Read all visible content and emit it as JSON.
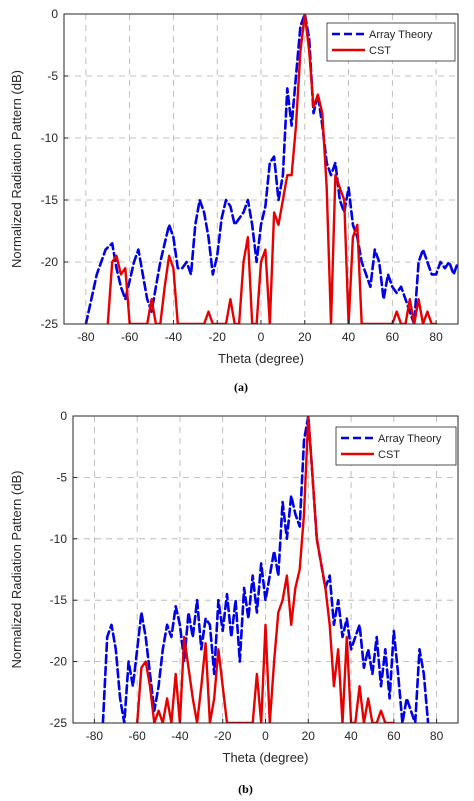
{
  "chart_data": [
    {
      "type": "line",
      "caption": "(a)",
      "xlabel": "Theta (degree)",
      "ylabel": "Normalized Radiation Pattern (dB)",
      "xlim": [
        -90,
        90
      ],
      "ylim": [
        -25,
        0
      ],
      "xticks": [
        -80,
        -60,
        -40,
        -20,
        0,
        20,
        40,
        60,
        80
      ],
      "yticks": [
        0,
        -5,
        -10,
        -15,
        -20,
        -25
      ],
      "grid": true,
      "legend_position": "top-right",
      "series": [
        {
          "name": "Array Theory",
          "color": "#0000e6",
          "dash": "dashed",
          "x": [
            -80,
            -75,
            -71,
            -68,
            -66,
            -64,
            -62,
            -60,
            -58,
            -56,
            -54,
            -52,
            -50,
            -48,
            -46,
            -44,
            -42,
            -40,
            -38,
            -36,
            -34,
            -32,
            -30,
            -28,
            -26,
            -24,
            -22,
            -20,
            -18,
            -16,
            -14,
            -12,
            -10,
            -8,
            -6,
            -4,
            -2,
            0,
            2,
            4,
            6,
            8,
            10,
            12,
            14,
            16,
            18,
            20,
            22,
            24,
            26,
            28,
            30,
            32,
            34,
            36,
            38,
            40,
            42,
            44,
            46,
            48,
            50,
            52,
            54,
            56,
            58,
            60,
            62,
            64,
            66,
            68,
            70,
            72,
            74,
            76,
            78,
            80,
            82,
            84,
            86,
            88,
            90
          ],
          "y": [
            -25,
            -21,
            -19,
            -18.5,
            -20.5,
            -22,
            -23,
            -21.5,
            -20,
            -19,
            -21,
            -23,
            -24,
            -22,
            -20,
            -18.5,
            -17,
            -18,
            -20.5,
            -20.5,
            -20,
            -21,
            -17,
            -15,
            -16,
            -18,
            -21,
            -19.5,
            -16.5,
            -15,
            -15.5,
            -17,
            -16.5,
            -16,
            -15,
            -17,
            -20,
            -17,
            -15.5,
            -12,
            -11.5,
            -15,
            -13,
            -6,
            -9,
            -5,
            -1,
            0,
            -2,
            -8,
            -6.5,
            -9,
            -12,
            -13,
            -12,
            -15,
            -16,
            -14,
            -17,
            -18,
            -20,
            -21,
            -22,
            -19,
            -20,
            -23,
            -21,
            -22,
            -22.5,
            -22,
            -23,
            -24,
            -25,
            -20,
            -19,
            -20,
            -21,
            -21,
            -20,
            -20.5,
            -20,
            -21,
            -20
          ]
        },
        {
          "name": "CST",
          "color": "#e60000",
          "dash": "solid",
          "x": [
            -70,
            -68,
            -66,
            -64,
            -62,
            -60,
            -58,
            -56,
            -54,
            -52,
            -50,
            -48,
            -46,
            -44,
            -42,
            -40,
            -38,
            -36,
            -34,
            -32,
            -30,
            -28,
            -26,
            -24,
            -22,
            -20,
            -18,
            -16,
            -14,
            -12,
            -10,
            -8,
            -6,
            -4,
            -2,
            0,
            2,
            4,
            6,
            8,
            10,
            12,
            14,
            16,
            18,
            20,
            22,
            24,
            26,
            28,
            30,
            32,
            34,
            36,
            38,
            40,
            42,
            44,
            46,
            48,
            50,
            52,
            54,
            56,
            58,
            60,
            62,
            64,
            66,
            68,
            70,
            72,
            74,
            76,
            78,
            80
          ],
          "y": [
            -25,
            -20,
            -19.5,
            -21,
            -20.5,
            -25,
            -25,
            -25,
            -25,
            -25,
            -23,
            -25,
            -25,
            -22,
            -19.5,
            -20.5,
            -25,
            -25,
            -25,
            -25,
            -25,
            -25,
            -25,
            -24,
            -25,
            -25,
            -25,
            -25,
            -23,
            -25,
            -25,
            -20,
            -18,
            -25,
            -25,
            -20,
            -19,
            -25,
            -16,
            -17,
            -15,
            -13,
            -13,
            -9,
            -3,
            0,
            -3,
            -7.5,
            -6.5,
            -8,
            -14,
            -25,
            -13,
            -14,
            -15,
            -25,
            -18,
            -17,
            -25,
            -25,
            -25,
            -25,
            -25,
            -25,
            -25,
            -25,
            -24,
            -25,
            -25,
            -23,
            -25,
            -23,
            -25,
            -24,
            -25,
            -25
          ]
        }
      ]
    },
    {
      "type": "line",
      "caption": "(b)",
      "xlabel": "Theta (degree)",
      "ylabel": "Normalized Radiation Pattern (dB)",
      "xlim": [
        -90,
        90
      ],
      "ylim": [
        -25,
        0
      ],
      "xticks": [
        -80,
        -60,
        -40,
        -20,
        0,
        20,
        40,
        60,
        80
      ],
      "yticks": [
        0,
        -5,
        -10,
        -15,
        -20,
        -25
      ],
      "grid": true,
      "legend_position": "top-right",
      "series": [
        {
          "name": "Array Theory",
          "color": "#0000e6",
          "dash": "dashed",
          "x": [
            -76,
            -74,
            -72,
            -70,
            -68,
            -66,
            -64,
            -62,
            -60,
            -58,
            -56,
            -54,
            -52,
            -50,
            -48,
            -46,
            -44,
            -42,
            -40,
            -38,
            -36,
            -34,
            -32,
            -30,
            -28,
            -26,
            -24,
            -22,
            -20,
            -18,
            -16,
            -14,
            -12,
            -10,
            -8,
            -6,
            -4,
            -2,
            0,
            2,
            4,
            6,
            8,
            10,
            12,
            14,
            16,
            18,
            20,
            22,
            24,
            26,
            28,
            30,
            32,
            34,
            36,
            38,
            40,
            42,
            44,
            46,
            48,
            50,
            52,
            54,
            56,
            58,
            60,
            62,
            64,
            66,
            68,
            70,
            72,
            74,
            76
          ],
          "y": [
            -25,
            -18,
            -17,
            -19,
            -23,
            -25,
            -20,
            -22,
            -19,
            -16,
            -18,
            -21,
            -24,
            -22,
            -19,
            -17,
            -18,
            -15.5,
            -17,
            -20,
            -16,
            -18,
            -15,
            -19,
            -16.5,
            -17,
            -21,
            -15,
            -17.5,
            -14.5,
            -18,
            -15,
            -20,
            -14,
            -16.5,
            -13,
            -16,
            -12,
            -15,
            -13,
            -11,
            -13,
            -7,
            -10,
            -6.5,
            -8,
            -9,
            -2,
            0,
            -5,
            -10,
            -12,
            -14,
            -13,
            -17,
            -15,
            -18,
            -16.5,
            -19,
            -18,
            -17,
            -20.5,
            -19,
            -21,
            -18,
            -22,
            -19,
            -23,
            -17.5,
            -21,
            -25,
            -23,
            -24,
            -25,
            -19,
            -21,
            -25
          ]
        },
        {
          "name": "CST",
          "color": "#e60000",
          "dash": "solid",
          "x": [
            -60,
            -58,
            -56,
            -54,
            -52,
            -50,
            -48,
            -46,
            -44,
            -42,
            -40,
            -38,
            -36,
            -34,
            -32,
            -30,
            -28,
            -26,
            -24,
            -22,
            -20,
            -18,
            -16,
            -14,
            -12,
            -10,
            -8,
            -6,
            -4,
            -2,
            0,
            2,
            4,
            6,
            8,
            10,
            12,
            14,
            16,
            18,
            20,
            22,
            24,
            26,
            28,
            30,
            32,
            34,
            36,
            38,
            40,
            42,
            44,
            46,
            48,
            50,
            52,
            54,
            56,
            58,
            60
          ],
          "y": [
            -25,
            -20.5,
            -20,
            -22,
            -25,
            -24,
            -25,
            -23,
            -25,
            -21,
            -25,
            -18,
            -20.5,
            -23,
            -25,
            -22,
            -18.5,
            -25,
            -23,
            -19,
            -22,
            -25,
            -25,
            -25,
            -25,
            -25,
            -25,
            -25,
            -21,
            -25,
            -17,
            -25,
            -20,
            -16,
            -15,
            -13,
            -17,
            -14,
            -12.5,
            -8,
            0,
            -5,
            -10,
            -12,
            -14,
            -17,
            -22,
            -19,
            -25,
            -18,
            -25,
            -25,
            -22,
            -25,
            -23,
            -25,
            -25,
            -24,
            -25,
            -25,
            -25
          ]
        }
      ]
    }
  ]
}
